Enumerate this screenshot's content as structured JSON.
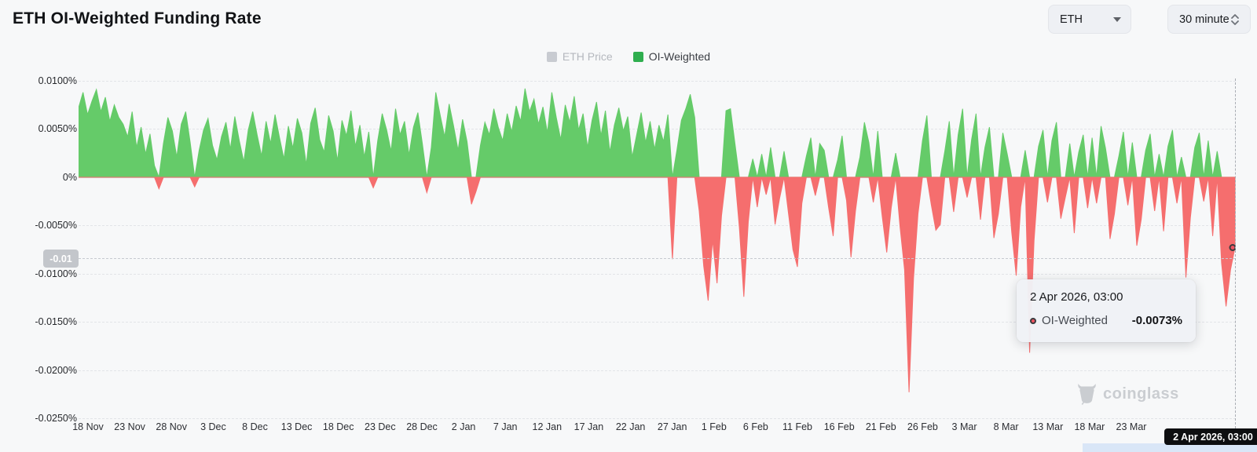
{
  "header": {
    "title": "ETH OI-Weighted Funding Rate",
    "symbol_select": {
      "value": "ETH"
    },
    "interval_select": {
      "value": "30 minute"
    }
  },
  "legend": {
    "items": [
      {
        "label": "ETH Price",
        "color": "#c8cbd1",
        "active": false
      },
      {
        "label": "OI-Weighted",
        "color": "#2fae4f",
        "active": true
      }
    ]
  },
  "axis_marker": {
    "label": "-0.01",
    "value": -0.0084
  },
  "tooltip": {
    "date": "2 Apr 2026, 03:00",
    "series_label": "OI-Weighted",
    "value": "-0.0073%",
    "marker_color": "#ef5361"
  },
  "crosshair": {
    "date_badge": "2 Apr 2026, 03:00"
  },
  "watermark": {
    "text": "coinglass"
  },
  "chart_data": {
    "type": "area",
    "title": "ETH OI-Weighted Funding Rate",
    "unit": "%",
    "ylim": [
      -0.025,
      0.01
    ],
    "grid": "dashed-horizontal",
    "legend_position": "top-center",
    "colors": {
      "positive": "#65cb69",
      "negative": "#f56e6e"
    },
    "y_ticks": [
      {
        "label": "0.0100%",
        "value": 0.01
      },
      {
        "label": "0.0050%",
        "value": 0.005
      },
      {
        "label": "0%",
        "value": 0
      },
      {
        "label": "-0.0050%",
        "value": -0.005
      },
      {
        "label": "-0.0100%",
        "value": -0.01
      },
      {
        "label": "-0.0150%",
        "value": -0.015
      },
      {
        "label": "-0.0200%",
        "value": -0.02
      },
      {
        "label": "-0.0250%",
        "value": -0.025
      }
    ],
    "x_ticks": [
      "18 Nov",
      "23 Nov",
      "28 Nov",
      "3 Dec",
      "8 Dec",
      "13 Dec",
      "18 Dec",
      "23 Dec",
      "28 Dec",
      "2 Jan",
      "7 Jan",
      "12 Jan",
      "17 Jan",
      "22 Jan",
      "27 Jan",
      "1 Feb",
      "6 Feb",
      "11 Feb",
      "16 Feb",
      "21 Feb",
      "26 Feb",
      "3 Mar",
      "8 Mar",
      "13 Mar",
      "18 Mar",
      "23 Mar"
    ],
    "x_range": {
      "start": "18 Nov",
      "end": "2 Apr 2026, 03:00"
    },
    "series": [
      {
        "name": "OI-Weighted",
        "last_point": {
          "date": "2 Apr 2026, 03:00",
          "value_pct": -0.0073
        },
        "values_pct": [
          0.0072,
          0.0088,
          0.0065,
          0.0079,
          0.0091,
          0.0068,
          0.0083,
          0.0058,
          0.0075,
          0.0062,
          0.0055,
          0.0042,
          0.0068,
          0.0031,
          0.0052,
          0.0024,
          0.0045,
          0.0012,
          -0.0012,
          0.0035,
          0.0062,
          0.0048,
          0.0021,
          0.0055,
          0.0068,
          0.0036,
          -0.001,
          0.0028,
          0.0049,
          0.0061,
          0.0033,
          0.0018,
          0.0042,
          0.0057,
          0.0029,
          0.0063,
          0.0038,
          0.0016,
          0.0049,
          0.0068,
          0.0044,
          0.0022,
          0.0058,
          0.0035,
          0.0065,
          0.0041,
          0.0019,
          0.0053,
          0.003,
          0.0061,
          0.0046,
          0.0013,
          0.0056,
          0.0072,
          0.0039,
          0.0026,
          0.0064,
          0.0048,
          0.0017,
          0.0059,
          0.0043,
          0.0069,
          0.0032,
          0.0054,
          0.0021,
          0.0047,
          -0.0011,
          0.0038,
          0.0066,
          0.0049,
          0.0027,
          0.0071,
          0.0044,
          0.0058,
          0.0023,
          0.0052,
          0.0067,
          0.0035,
          -0.0016,
          0.0031,
          0.0088,
          0.0064,
          0.0042,
          0.0076,
          0.0053,
          0.0028,
          0.006,
          0.0037,
          -0.0028,
          -0.0015,
          0.0033,
          0.0057,
          0.0044,
          0.0071,
          0.0052,
          0.0038,
          0.0066,
          0.0047,
          0.0074,
          0.0058,
          0.0092,
          0.0068,
          0.0081,
          0.0055,
          0.0073,
          0.0046,
          0.0088,
          0.0062,
          0.0039,
          0.0075,
          0.0057,
          0.0084,
          0.0049,
          0.0066,
          0.0031,
          0.0059,
          0.0078,
          0.0043,
          0.0069,
          0.0026,
          0.0054,
          0.0072,
          0.0048,
          0.0063,
          0.0021,
          0.0044,
          0.0067,
          0.0036,
          0.0058,
          0.0029,
          0.0054,
          0.0037,
          0.0065,
          -0.0085,
          0.0028,
          0.0059,
          0.0071,
          0.0086,
          0.0062,
          -0.0035,
          -0.0092,
          -0.0128,
          -0.0065,
          -0.011,
          -0.004,
          0.0069,
          0.0071,
          0.0035,
          -0.0052,
          -0.0124,
          -0.0046,
          0.0019,
          -0.0031,
          0.0024,
          -0.0018,
          0.0031,
          -0.0049,
          -0.0022,
          0.0027,
          -0.0038,
          -0.0075,
          -0.0093,
          -0.0027,
          0.0022,
          0.0041,
          -0.0019,
          0.0035,
          0.0028,
          -0.0032,
          -0.0061,
          0.0018,
          0.0043,
          -0.0024,
          -0.0083,
          -0.0035,
          0.0021,
          0.0057,
          0.0036,
          -0.0026,
          0.0048,
          -0.0041,
          -0.0078,
          -0.0032,
          0.0025,
          -0.0052,
          -0.0096,
          -0.0223,
          -0.0105,
          -0.0038,
          0.0038,
          0.0064,
          -0.0029,
          -0.0055,
          -0.0049,
          0.0027,
          0.0058,
          -0.0036,
          0.0044,
          0.0071,
          -0.0021,
          0.0039,
          0.0066,
          -0.0044,
          0.0031,
          0.0052,
          -0.0063,
          -0.0038,
          0.0046,
          0.0024,
          -0.0057,
          -0.0102,
          -0.0031,
          0.0028,
          -0.0182,
          -0.0066,
          0.0032,
          0.0049,
          -0.0026,
          0.0038,
          0.0057,
          -0.0043,
          -0.0021,
          0.0035,
          -0.0058,
          0.0026,
          0.0044,
          -0.0032,
          0.0041,
          -0.0027,
          0.0053,
          0.003,
          -0.0064,
          -0.0038,
          0.0022,
          0.0047,
          -0.0029,
          0.0036,
          -0.0071,
          -0.0044,
          0.0028,
          0.0045,
          -0.0035,
          0.0024,
          -0.0056,
          0.0032,
          0.0049,
          -0.0027,
          0.0021,
          -0.0104,
          -0.0042,
          0.0031,
          0.0046,
          -0.0025,
          0.0038,
          -0.0061,
          0.0027,
          -0.0089,
          -0.0134,
          -0.0096,
          -0.0073
        ]
      }
    ]
  }
}
